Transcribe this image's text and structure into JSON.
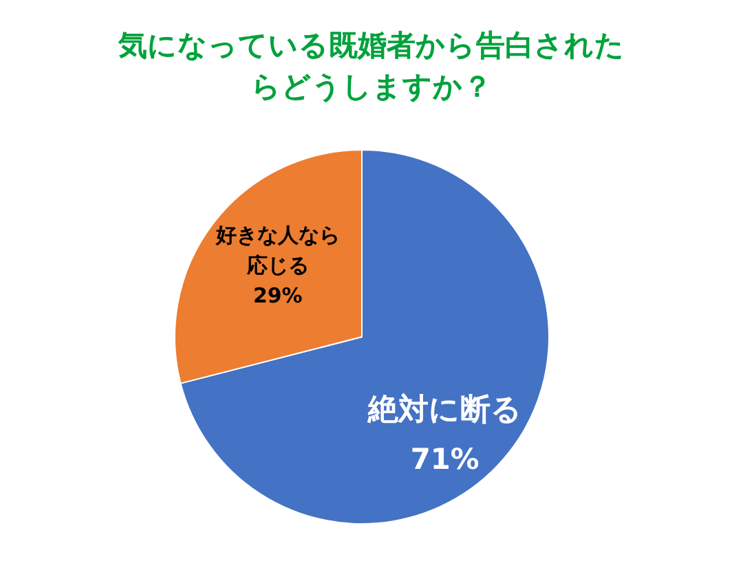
{
  "chart_data": {
    "type": "pie",
    "title": "気になっている既婚者から告白されたらどうしますか？",
    "categories": [
      "絶対に断る",
      "好きな人なら応じる"
    ],
    "values": [
      71,
      29
    ],
    "value_labels": [
      "71%",
      "29%"
    ],
    "colors": [
      "#4472c4",
      "#ed7d31"
    ]
  }
}
